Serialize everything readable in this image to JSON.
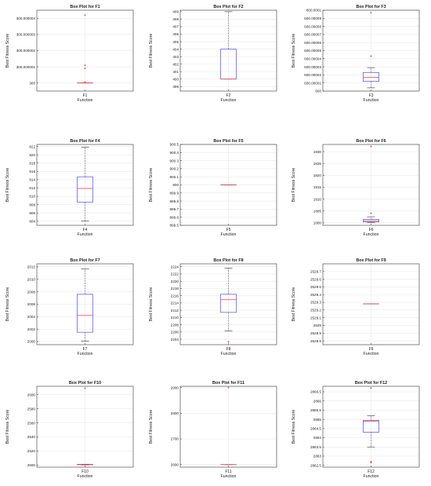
{
  "chart_data": [
    {
      "type": "box",
      "title": "Box Plot for F1",
      "xlabel": "Function",
      "ylabel": "Best Fitness Score",
      "category": "F1",
      "yticks": [
        300,
        300.000001,
        300.000002,
        300.000003,
        300.000004
      ],
      "ytick_labels": [
        "300",
        "300.000001",
        "300.000002",
        "300.000003",
        "300.000004"
      ],
      "ylim": [
        299.9999995,
        300.0000045
      ],
      "whisker_low": 300,
      "q1": 300,
      "median": 300,
      "q3": 300,
      "whisker_high": 300,
      "outliers": [
        300.0000042,
        300.0000011,
        300.0000009,
        300.00000005
      ]
    },
    {
      "type": "box",
      "title": "Box Plot for F2",
      "xlabel": "Function",
      "ylabel": "Best Fitness Score",
      "category": "F2",
      "yticks": [
        399,
        400,
        401,
        402,
        403,
        404,
        405,
        406,
        407,
        408,
        409
      ],
      "ytick_labels": [
        "399",
        "400",
        "401",
        "402",
        "403",
        "404",
        "405",
        "406",
        "407",
        "408",
        "409"
      ],
      "ylim": [
        398.4,
        409.2
      ],
      "whisker_low": 400,
      "q1": 400,
      "median": 400,
      "q3": 404,
      "whisker_high": 409,
      "outliers": []
    },
    {
      "type": "box",
      "title": "Box Plot for F3",
      "xlabel": "Function",
      "ylabel": "Best Fitness Score",
      "category": "F3",
      "yticks": [
        600,
        600.00001,
        600.00002,
        600.00003,
        600.00004,
        600.00005,
        600.00006,
        600.00007,
        600.00008,
        600.00009,
        600.0001
      ],
      "ytick_labels": [
        "600",
        "600.00001",
        "600.00002",
        "600.00003",
        "600.00004",
        "600.00005",
        "600.00006",
        "600.00007",
        "600.00008",
        "600.00009",
        "600.0001"
      ],
      "ylim": [
        600,
        600.0001
      ],
      "whisker_low": 600.000004,
      "q1": 600.000012,
      "median": 600.000017,
      "q3": 600.000023,
      "whisker_high": 600.000029,
      "outliers": [
        600.000097,
        600.000043
      ]
    },
    {
      "type": "box",
      "title": "Box Plot for F4",
      "xlabel": "Function",
      "ylabel": "Best Fitness Score",
      "category": "F4",
      "yticks": [
        804,
        806,
        808,
        810,
        812,
        814,
        816,
        818,
        820,
        822
      ],
      "ytick_labels": [
        "804",
        "806",
        "808",
        "810",
        "812",
        "814",
        "816",
        "818",
        "820",
        "822"
      ],
      "ylim": [
        803,
        822.5
      ],
      "whisker_low": 804,
      "q1": 808.6,
      "median": 811.9,
      "q3": 814.7,
      "whisker_high": 821.8,
      "outliers": []
    },
    {
      "type": "box",
      "title": "Box Plot for F5",
      "xlabel": "Function",
      "ylabel": "Best Fitness Score",
      "category": "F5",
      "yticks": [
        899.5,
        899.6,
        899.7,
        899.8,
        899.9,
        900,
        900.1,
        900.2,
        900.3,
        900.4,
        900.5
      ],
      "ytick_labels": [
        "899.5",
        "899.6",
        "899.7",
        "899.8",
        "899.9",
        "900",
        "900.1",
        "900.2",
        "900.3",
        "900.4",
        "900.5"
      ],
      "ylim": [
        899.5,
        900.5
      ],
      "whisker_low": 900,
      "q1": 900,
      "median": 900,
      "q3": 900,
      "whisker_high": 900,
      "outliers": []
    },
    {
      "type": "box",
      "title": "Box Plot for F6",
      "xlabel": "Function",
      "ylabel": "Best Fitness Score",
      "category": "F6",
      "yticks": [
        1800,
        1805,
        1810,
        1815,
        1820,
        1825,
        1830
      ],
      "ytick_labels": [
        "1800",
        "1805",
        "1810",
        "1815",
        "1820",
        "1825",
        "1830"
      ],
      "ylim": [
        1799,
        1833
      ],
      "whisker_low": 1800.1,
      "q1": 1800.4,
      "median": 1800.9,
      "q3": 1801.5,
      "whisker_high": 1802.6,
      "outliers": [
        1832.2,
        1804.1
      ]
    },
    {
      "type": "box",
      "title": "Box Plot for F7",
      "xlabel": "Function",
      "ylabel": "Best Fitness Score",
      "category": "F7",
      "yticks": [
        2000,
        2002,
        2004,
        2006,
        2008,
        2010,
        2012
      ],
      "ytick_labels": [
        "2000",
        "2002",
        "2004",
        "2006",
        "2008",
        "2010",
        "2012"
      ],
      "ylim": [
        1999.5,
        2012.5
      ],
      "whisker_low": 2000.1,
      "q1": 2001.5,
      "median": 2004.2,
      "q3": 2007.6,
      "whisker_high": 2011.7,
      "outliers": []
    },
    {
      "type": "box",
      "title": "Box Plot for F8",
      "xlabel": "Function",
      "ylabel": "Best Fitness Score",
      "category": "F8",
      "yticks": [
        2204,
        2206,
        2208,
        2210,
        2212,
        2214,
        2216,
        2218,
        2220,
        2222,
        2224
      ],
      "ytick_labels": [
        "2204",
        "2206",
        "2208",
        "2210",
        "2212",
        "2214",
        "2216",
        "2218",
        "2220",
        "2222",
        "2224"
      ],
      "ylim": [
        2202.5,
        2224.8
      ],
      "whisker_low": 2206.3,
      "q1": 2211.4,
      "median": 2214.9,
      "q3": 2216.4,
      "whisker_high": 2223.6,
      "outliers": [
        2203.3
      ]
    },
    {
      "type": "box",
      "title": "Box Plot for F9",
      "xlabel": "Function",
      "ylabel": "Best Fitness Score",
      "category": "F9",
      "yticks": [
        2528.8,
        2528.9,
        2529,
        2529.1,
        2529.2,
        2529.3,
        2529.4,
        2529.5,
        2529.6,
        2529.7
      ],
      "ytick_labels": [
        "2528.8",
        "2528.9",
        "2529",
        "2529.1",
        "2529.2",
        "2529.3",
        "2529.4",
        "2529.5",
        "2529.6",
        "2529.7"
      ],
      "ylim": [
        2528.75,
        2529.8
      ],
      "whisker_low": 2529.28,
      "q1": 2529.28,
      "median": 2529.28,
      "q3": 2529.28,
      "whisker_high": 2529.28,
      "outliers": []
    },
    {
      "type": "box",
      "title": "Box Plot for F10",
      "xlabel": "Function",
      "ylabel": "Best Fitness Score",
      "category": "F10",
      "yticks": [
        2500,
        2520,
        2540,
        2560,
        2580,
        2600
      ],
      "ytick_labels": [
        "2500",
        "2520",
        "2540",
        "2560",
        "2580",
        "2600"
      ],
      "ylim": [
        2497,
        2612
      ],
      "whisker_low": 2500.2,
      "q1": 2500.5,
      "median": 2500.7,
      "q3": 2500.9,
      "whisker_high": 2501.2,
      "outliers": [
        2609
      ]
    },
    {
      "type": "box",
      "title": "Box Plot for F11",
      "xlabel": "Function",
      "ylabel": "Best Fitness Score",
      "category": "F11",
      "yticks": [
        2600,
        2700,
        2800,
        2900
      ],
      "ytick_labels": [
        "2600",
        "2700",
        "2800",
        "2900"
      ],
      "ylim": [
        2590,
        2905
      ],
      "whisker_low": 2600,
      "q1": 2600,
      "median": 2600,
      "q3": 2600,
      "whisker_high": 2600,
      "outliers": [
        2900
      ]
    },
    {
      "type": "box",
      "title": "Box Plot for F12",
      "xlabel": "Function",
      "ylabel": "Best Fitness Score",
      "category": "F12",
      "yticks": [
        2862.5,
        2863,
        2863.5,
        2864,
        2864.5,
        2865,
        2865.5,
        2866,
        2866.5
      ],
      "ytick_labels": [
        "2862.5",
        "2863",
        "2863.5",
        "2864",
        "2864.5",
        "2865",
        "2865.5",
        "2866",
        "2866.5"
      ],
      "ylim": [
        2862.4,
        2866.8
      ],
      "whisker_low": 2863.5,
      "q1": 2864.3,
      "median": 2864.9,
      "q3": 2864.95,
      "whisker_high": 2865.2,
      "outliers": [
        2866.7,
        2862.7,
        2862.65
      ]
    }
  ],
  "colors": {
    "box": "#4c4cff",
    "median": "#ff3b3b",
    "whisker": "#5a5a9a",
    "outlier": "#ff3b3b",
    "axis": "#333333",
    "grid": "#e6e6e6",
    "text": "#222222"
  }
}
